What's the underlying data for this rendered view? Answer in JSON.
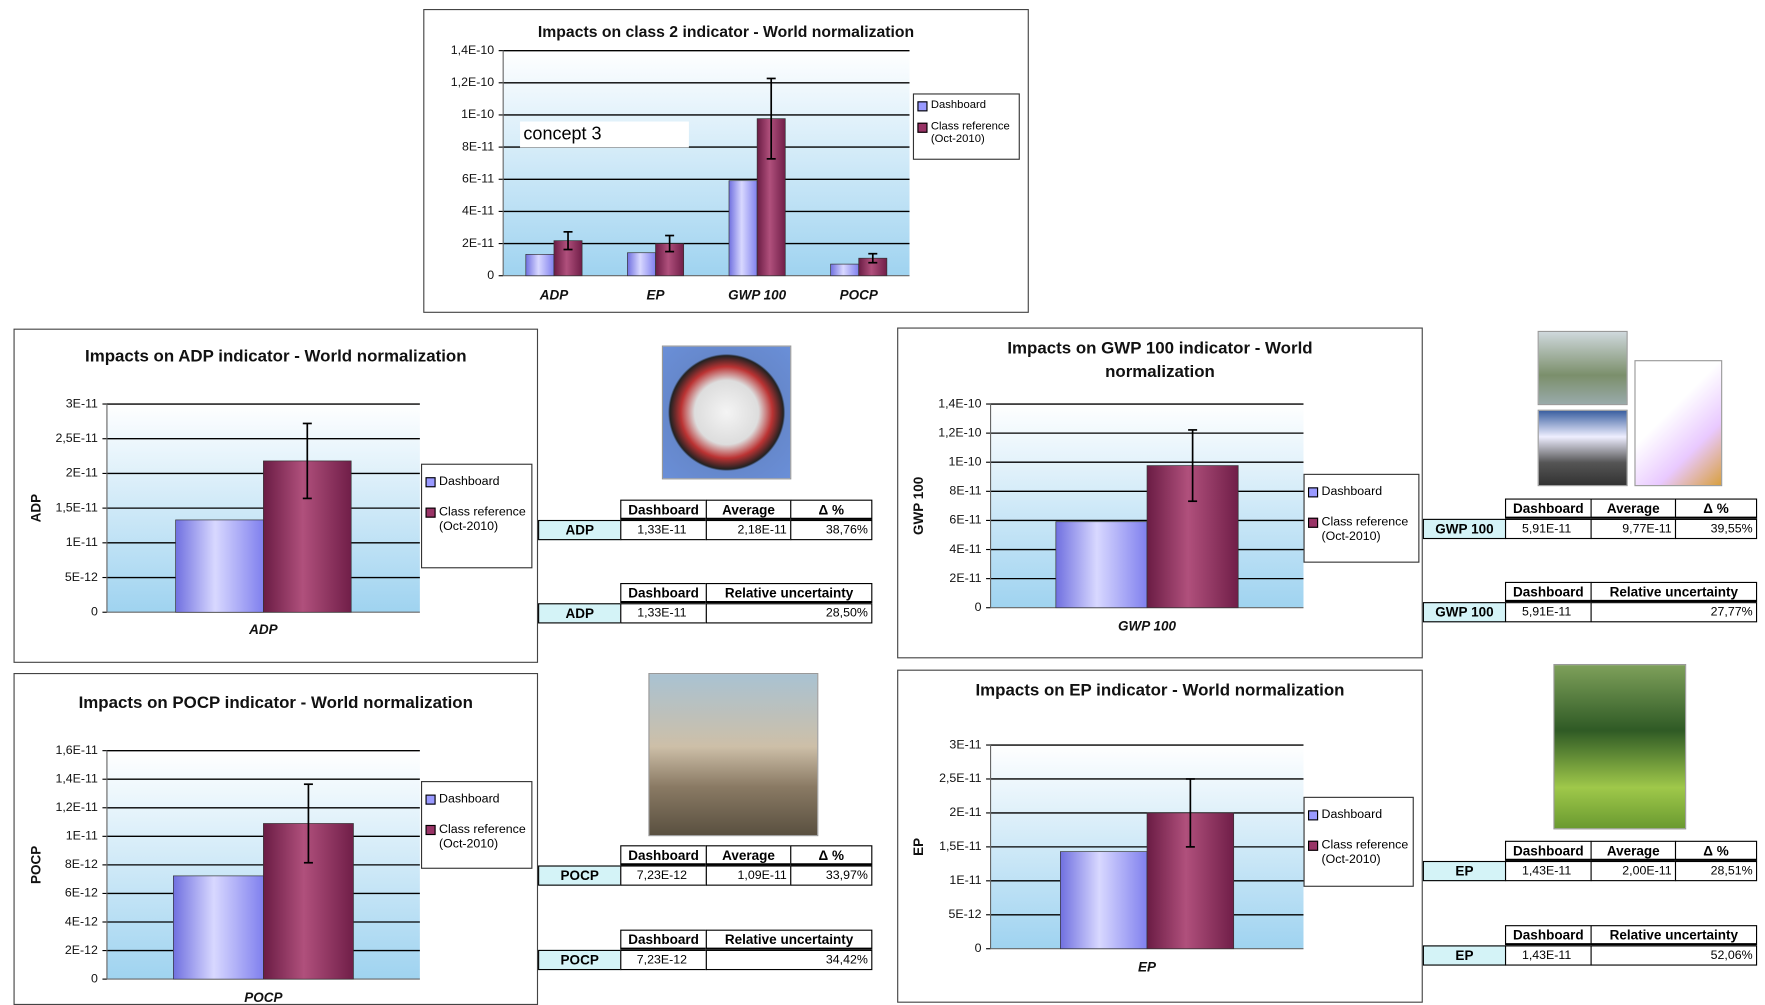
{
  "chart_data": [
    {
      "type": "bar",
      "title": "Impacts on class 2 indicator - World normalization",
      "categories": [
        "ADP",
        "EP",
        "GWP 100",
        "POCP"
      ],
      "series": [
        {
          "name": "Dashboard",
          "color": "#9999ff",
          "values": [
            1.33e-11,
            1.43e-11,
            5.91e-11,
            7.23e-12
          ]
        },
        {
          "name": "Class reference (Oct-2010)",
          "color": "#993366",
          "values": [
            2.18e-11,
            2e-11,
            9.77e-11,
            1.09e-11
          ],
          "errors": [
            5.5e-12,
            5e-12,
            2.5e-11,
            2.8e-12
          ]
        }
      ],
      "ylim": [
        0,
        1.4e-10
      ],
      "yticks": [
        0,
        {
          "value": 2e-11,
          "label": "2E-11"
        },
        {
          "value": 4e-11,
          "label": "4E-11"
        },
        {
          "value": 6e-11,
          "label": "6E-11"
        },
        {
          "value": 8e-11,
          "label": "8E-11"
        },
        {
          "value": 1e-10,
          "label": "1E-10"
        },
        {
          "value": 1.2e-10,
          "label": "1,2E-10"
        },
        {
          "value": 1.4e-10,
          "label": "1,4E-10"
        }
      ],
      "grid": true,
      "legend": "right",
      "annotation": "concept 3"
    },
    {
      "type": "bar",
      "title": "Impacts on ADP indicator - World normalization",
      "y_label": "ADP",
      "categories": [
        "ADP"
      ],
      "series": [
        {
          "name": "Dashboard",
          "color": "#9999ff",
          "values": [
            1.33e-11
          ]
        },
        {
          "name": "Class reference (Oct-2010)",
          "color": "#993366",
          "values": [
            2.18e-11
          ],
          "errors": [
            5.4e-12
          ]
        }
      ],
      "ylim": [
        0,
        3e-11
      ],
      "yticks": [
        0,
        {
          "value": 5e-12,
          "label": "5E-12"
        },
        {
          "value": 1e-11,
          "label": "1E-11"
        },
        {
          "value": 1.5e-11,
          "label": "1,5E-11"
        },
        {
          "value": 2e-11,
          "label": "2E-11"
        },
        {
          "value": 2.5e-11,
          "label": "2,5E-11"
        },
        {
          "value": 3e-11,
          "label": "3E-11"
        }
      ],
      "grid": true,
      "legend": "right"
    },
    {
      "type": "bar",
      "title": "Impacts on GWP 100 indicator - World normalization",
      "y_label": "GWP 100",
      "categories": [
        "GWP 100"
      ],
      "series": [
        {
          "name": "Dashboard",
          "color": "#9999ff",
          "values": [
            5.91e-11
          ]
        },
        {
          "name": "Class reference (Oct-2010)",
          "color": "#993366",
          "values": [
            9.77e-11
          ],
          "errors": [
            2.45e-11
          ]
        }
      ],
      "ylim": [
        0,
        1.4e-10
      ],
      "yticks": [
        0,
        {
          "value": 2e-11,
          "label": "2E-11"
        },
        {
          "value": 4e-11,
          "label": "4E-11"
        },
        {
          "value": 6e-11,
          "label": "6E-11"
        },
        {
          "value": 8e-11,
          "label": "8E-11"
        },
        {
          "value": 1e-10,
          "label": "1E-10"
        },
        {
          "value": 1.2e-10,
          "label": "1,2E-10"
        },
        {
          "value": 1.4e-10,
          "label": "1,4E-10"
        }
      ],
      "grid": true,
      "legend": "right"
    },
    {
      "type": "bar",
      "title": "Impacts on POCP indicator - World normalization",
      "y_label": "POCP",
      "categories": [
        "POCP"
      ],
      "series": [
        {
          "name": "Dashboard",
          "color": "#9999ff",
          "values": [
            7.23e-12
          ]
        },
        {
          "name": "Class reference (Oct-2010)",
          "color": "#993366",
          "values": [
            1.09e-11
          ],
          "errors": [
            2.75e-12
          ]
        }
      ],
      "ylim": [
        0,
        1.6e-11
      ],
      "yticks": [
        0,
        {
          "value": 2e-12,
          "label": "2E-12"
        },
        {
          "value": 4e-12,
          "label": "4E-12"
        },
        {
          "value": 6e-12,
          "label": "6E-12"
        },
        {
          "value": 8e-12,
          "label": "8E-12"
        },
        {
          "value": 1e-11,
          "label": "1E-11"
        },
        {
          "value": 1.2e-11,
          "label": "1,2E-11"
        },
        {
          "value": 1.4e-11,
          "label": "1,4E-11"
        },
        {
          "value": 1.6e-11,
          "label": "1,6E-11"
        }
      ],
      "grid": true,
      "legend": "right"
    },
    {
      "type": "bar",
      "title": "Impacts on EP indicator - World normalization",
      "y_label": "EP",
      "categories": [
        "EP"
      ],
      "series": [
        {
          "name": "Dashboard",
          "color": "#9999ff",
          "values": [
            1.43e-11
          ]
        },
        {
          "name": "Class reference (Oct-2010)",
          "color": "#993366",
          "values": [
            2e-11
          ],
          "errors": [
            5e-12
          ]
        }
      ],
      "ylim": [
        0,
        3e-11
      ],
      "yticks": [
        0,
        {
          "value": 5e-12,
          "label": "5E-12"
        },
        {
          "value": 1e-11,
          "label": "1E-11"
        },
        {
          "value": 1.5e-11,
          "label": "1,5E-11"
        },
        {
          "value": 2e-11,
          "label": "2E-11"
        },
        {
          "value": 2.5e-11,
          "label": "2,5E-11"
        },
        {
          "value": 3e-11,
          "label": "3E-11"
        }
      ],
      "grid": true,
      "legend": "right"
    }
  ],
  "tables": [
    {
      "header": [
        "Dashboard",
        "Average",
        "Δ %"
      ],
      "row": [
        "ADP",
        "1,33E-11",
        "2,18E-11",
        "38,76%"
      ]
    },
    {
      "header": [
        "Dashboard",
        "Relative uncertainty"
      ],
      "row": [
        "ADP",
        "1,33E-11",
        "28,50%"
      ]
    },
    {
      "header": [
        "Dashboard",
        "Average",
        "Δ %"
      ],
      "row": [
        "GWP 100",
        "5,91E-11",
        "9,77E-11",
        "39,55%"
      ]
    },
    {
      "header": [
        "Dashboard",
        "Relative uncertainty"
      ],
      "row": [
        "GWP 100",
        "5,91E-11",
        "27,77%"
      ]
    },
    {
      "header": [
        "Dashboard",
        "Average",
        "Δ %"
      ],
      "row": [
        "POCP",
        "7,23E-12",
        "1,09E-11",
        "33,97%"
      ]
    },
    {
      "header": [
        "Dashboard",
        "Relative uncertainty"
      ],
      "row": [
        "POCP",
        "7,23E-12",
        "34,42%"
      ]
    },
    {
      "header": [
        "Dashboard",
        "Average",
        "Δ %"
      ],
      "row": [
        "EP",
        "1,43E-11",
        "2,00E-11",
        "28,51%"
      ]
    },
    {
      "header": [
        "Dashboard",
        "Relative uncertainty"
      ],
      "row": [
        "EP",
        "1,43E-11",
        "52,06%"
      ]
    }
  ]
}
